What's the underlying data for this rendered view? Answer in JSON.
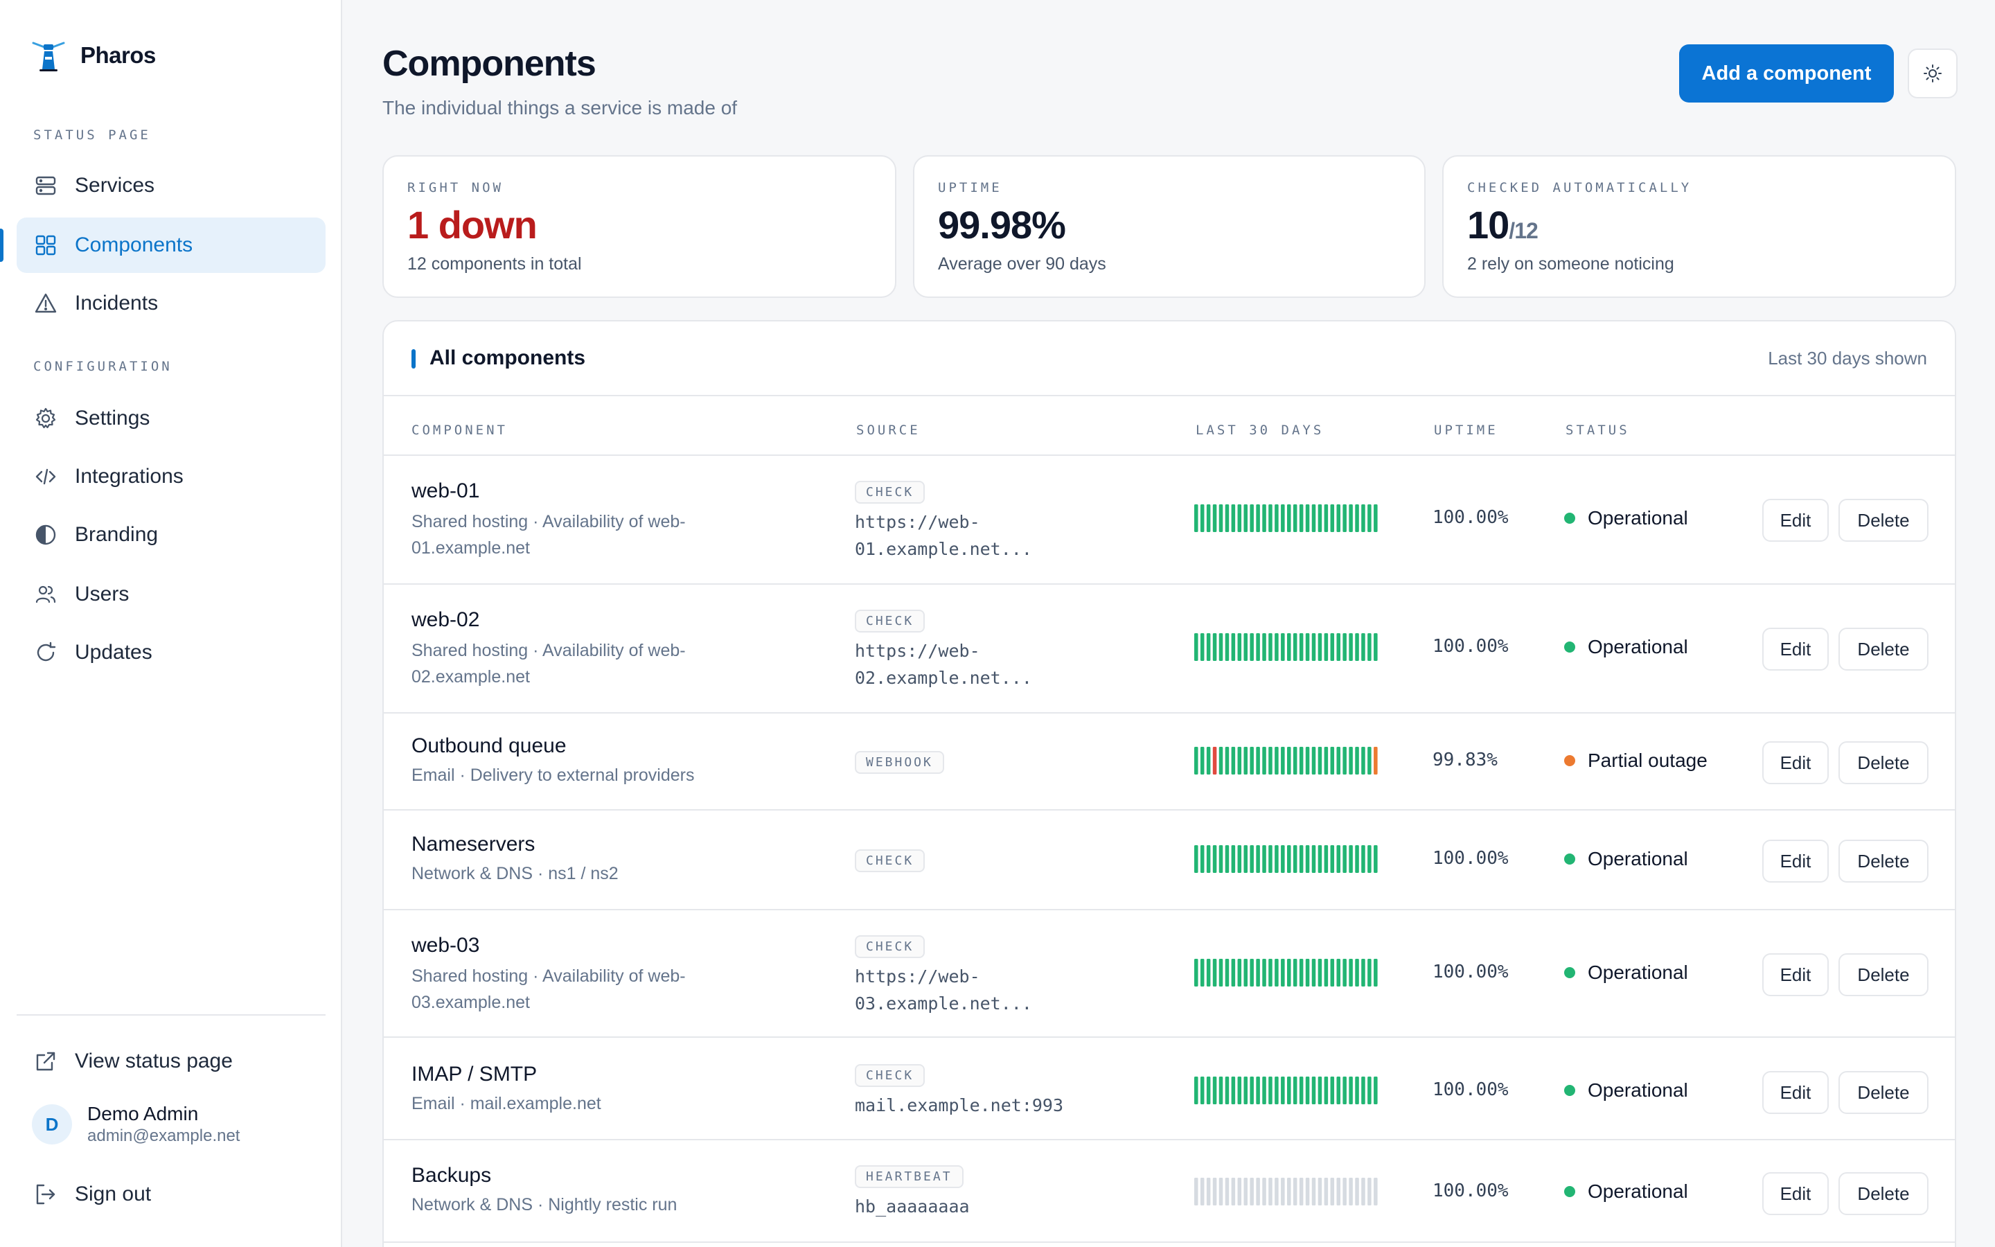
{
  "brand": {
    "name": "Pharos"
  },
  "sidebar": {
    "section_status": "STATUS PAGE",
    "section_config": "CONFIGURATION",
    "items": [
      {
        "label": "Services",
        "icon": "server-icon"
      },
      {
        "label": "Components",
        "icon": "grid-icon",
        "active": true
      },
      {
        "label": "Incidents",
        "icon": "warning-icon"
      },
      {
        "label": "Settings",
        "icon": "gear-icon"
      },
      {
        "label": "Integrations",
        "icon": "code-icon"
      },
      {
        "label": "Branding",
        "icon": "contrast-icon"
      },
      {
        "label": "Users",
        "icon": "users-icon"
      },
      {
        "label": "Updates",
        "icon": "refresh-icon"
      }
    ],
    "view_status_page": "View status page",
    "sign_out": "Sign out",
    "user": {
      "initial": "D",
      "name": "Demo Admin",
      "email": "admin@example.net"
    }
  },
  "header": {
    "title": "Components",
    "subtitle": "The individual things a service is made of",
    "add_button": "Add a component"
  },
  "stats": [
    {
      "label": "RIGHT NOW",
      "value": "1 down",
      "desc": "12 components in total"
    },
    {
      "label": "UPTIME",
      "value": "99.98%",
      "desc": "Average over 90 days"
    },
    {
      "label": "CHECKED AUTOMATICALLY",
      "value": "10",
      "value_suffix": "/12",
      "desc": "2 rely on someone noticing"
    }
  ],
  "table": {
    "title": "All components",
    "note": "Last 30 days shown",
    "columns": [
      "COMPONENT",
      "SOURCE",
      "LAST 30 DAYS",
      "UPTIME",
      "STATUS"
    ],
    "edit_label": "Edit",
    "delete_label": "Delete",
    "colors": {
      "ok": "#22b573",
      "partial": "#ec7a30",
      "down": "#e0493f",
      "nodata": "#d6dbe1"
    },
    "rows": [
      {
        "name": "web-01",
        "desc": "Shared hosting · Availability of web-01.example.net",
        "tag": "CHECK",
        "source": "https://web-01.example.net...",
        "uptime": "100.00%",
        "status": "Operational",
        "status_color": "#22b573",
        "bars": "ok"
      },
      {
        "name": "web-02",
        "desc": "Shared hosting · Availability of web-02.example.net",
        "tag": "CHECK",
        "source": "https://web-02.example.net...",
        "uptime": "100.00%",
        "status": "Operational",
        "status_color": "#22b573",
        "bars": "ok"
      },
      {
        "name": "Outbound queue",
        "desc": "Email · Delivery to external providers",
        "tag": "WEBHOOK",
        "source": "",
        "uptime": "99.83%",
        "status": "Partial outage",
        "status_color": "#ec7a30",
        "bars": "mixed"
      },
      {
        "name": "Nameservers",
        "desc": "Network & DNS · ns1 / ns2",
        "tag": "CHECK",
        "source": "",
        "uptime": "100.00%",
        "status": "Operational",
        "status_color": "#22b573",
        "bars": "ok"
      },
      {
        "name": "web-03",
        "desc": "Shared hosting · Availability of web-03.example.net",
        "tag": "CHECK",
        "source": "https://web-03.example.net...",
        "uptime": "100.00%",
        "status": "Operational",
        "status_color": "#22b573",
        "bars": "ok"
      },
      {
        "name": "IMAP / SMTP",
        "desc": "Email · mail.example.net",
        "tag": "CHECK",
        "source": "mail.example.net:993",
        "uptime": "100.00%",
        "status": "Operational",
        "status_color": "#22b573",
        "bars": "ok"
      },
      {
        "name": "Backups",
        "desc": "Network & DNS · Nightly restic run",
        "tag": "HEARTBEAT",
        "source": "hb_aaaaaaaa",
        "uptime": "100.00%",
        "status": "Operational",
        "status_color": "#22b573",
        "bars": "nodata"
      }
    ]
  }
}
